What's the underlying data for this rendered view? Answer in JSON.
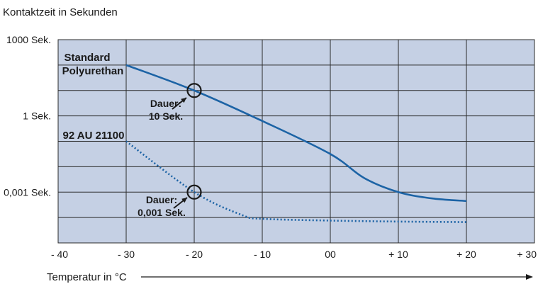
{
  "chart_data": {
    "type": "line",
    "title": "Kontaktzeit in Sekunden",
    "xlabel": "Temperatur in °C",
    "ylabel": "",
    "x_ticks": [
      "- 40",
      "- 30",
      "- 20",
      "- 10",
      "00",
      "+ 10",
      "+ 20",
      "+ 30"
    ],
    "x_values": [
      -40,
      -30,
      -20,
      -10,
      0,
      10,
      20,
      30
    ],
    "xlim": [
      -40,
      30
    ],
    "y_ticks": [
      {
        "label": "1000 Sek.",
        "exp": 3
      },
      {
        "label": "1 Sek.",
        "exp": 0
      },
      {
        "label": "0,001 Sek.",
        "exp": -3
      }
    ],
    "y_scale": "log",
    "ylim_exp": [
      -5,
      3
    ],
    "grid": true,
    "background": "#c5d0e4",
    "series": [
      {
        "name": "Standard Polyurethan",
        "style": "solid",
        "color": "#1c63a5",
        "points": [
          [
            -30,
            2.0
          ],
          [
            -20,
            1.0
          ],
          [
            -10,
            -0.2
          ],
          [
            0,
            -1.5
          ],
          [
            5,
            -2.45
          ],
          [
            10,
            -3.0
          ],
          [
            15,
            -3.25
          ],
          [
            20,
            -3.35
          ]
        ]
      },
      {
        "name": "92 AU 21100",
        "style": "dotted",
        "color": "#1c63a5",
        "points": [
          [
            -30,
            -1.0
          ],
          [
            -20,
            -3.0
          ],
          [
            -13,
            -3.9
          ],
          [
            -10,
            -4.05
          ],
          [
            0,
            -4.12
          ],
          [
            10,
            -4.16
          ],
          [
            20,
            -4.18
          ]
        ]
      }
    ],
    "series_labels": [
      {
        "lines": [
          "Standard",
          "Polyurethan"
        ]
      },
      {
        "lines": [
          "92 AU 21100"
        ]
      }
    ],
    "annotations": [
      {
        "lines": [
          "Dauer:",
          "10 Sek."
        ],
        "x": -20,
        "y_exp": 1.0
      },
      {
        "lines": [
          "Dauer:",
          "0,001 Sek."
        ],
        "x": -20,
        "y_exp": -3.0
      }
    ]
  }
}
